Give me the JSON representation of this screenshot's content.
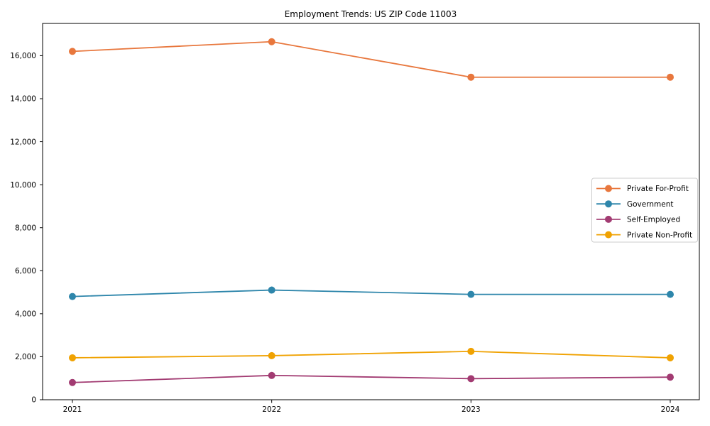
{
  "chart_data": {
    "type": "line",
    "title": "Employment Trends: US ZIP Code 11003",
    "categories": [
      "2021",
      "2022",
      "2023",
      "2024"
    ],
    "series": [
      {
        "name": "Private For-Profit",
        "color": "#e8773d",
        "values": [
          16200,
          16650,
          15000,
          15000
        ]
      },
      {
        "name": "Government",
        "color": "#2e86ab",
        "values": [
          4800,
          5100,
          4900,
          4900
        ]
      },
      {
        "name": "Self-Employed",
        "color": "#a23b72",
        "values": [
          800,
          1130,
          980,
          1050
        ]
      },
      {
        "name": "Private Non-Profit",
        "color": "#f0a202",
        "values": [
          1950,
          2050,
          2250,
          1950
        ]
      }
    ],
    "xlabel": "",
    "ylabel": "",
    "ylim": [
      0,
      17500
    ],
    "yticks": [
      0,
      2000,
      4000,
      6000,
      8000,
      10000,
      12000,
      14000,
      16000
    ],
    "grid": false,
    "legend_position": "center-right",
    "marker": "circle",
    "plot_border_color": "#000000",
    "legend_border_color": "#cccccc",
    "background_color": "#ffffff"
  }
}
